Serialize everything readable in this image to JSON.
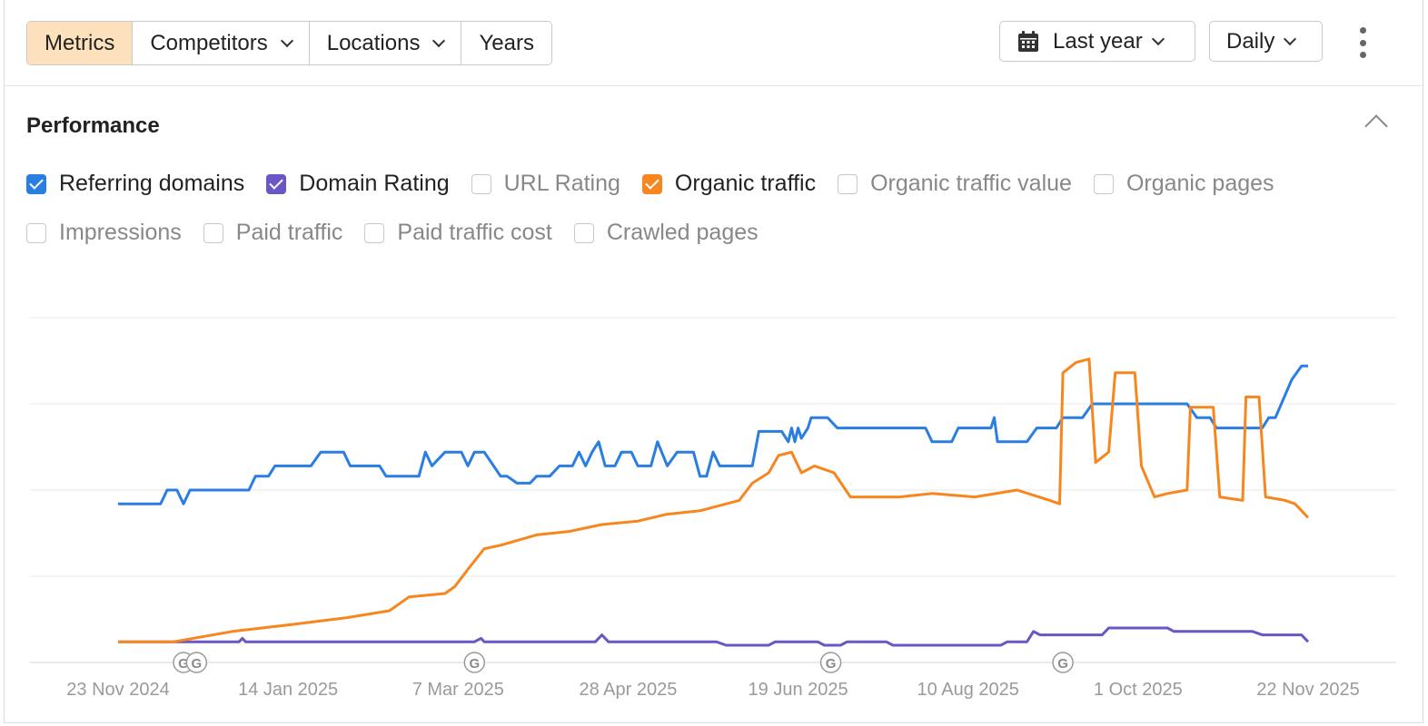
{
  "toolbar": {
    "segments": [
      {
        "label": "Metrics",
        "active": true,
        "dropdown": false
      },
      {
        "label": "Competitors",
        "active": false,
        "dropdown": true
      },
      {
        "label": "Locations",
        "active": false,
        "dropdown": true
      },
      {
        "label": "Years",
        "active": false,
        "dropdown": false
      }
    ],
    "date_range": {
      "label": "Last year",
      "icon": "calendar-icon"
    },
    "granularity": {
      "label": "Daily"
    },
    "more_icon": "more-vertical-icon"
  },
  "panel": {
    "title": "Performance",
    "collapse_icon": "chevron-up-icon"
  },
  "metrics": [
    {
      "label": "Referring domains",
      "checked": true,
      "color": "#2a7de1"
    },
    {
      "label": "Domain Rating",
      "checked": true,
      "color": "#6c55c5"
    },
    {
      "label": "URL Rating",
      "checked": false,
      "color": ""
    },
    {
      "label": "Organic traffic",
      "checked": true,
      "color": "#f7861e"
    },
    {
      "label": "Organic traffic value",
      "checked": false,
      "color": ""
    },
    {
      "label": "Organic pages",
      "checked": false,
      "color": ""
    },
    {
      "label": "Impressions",
      "checked": false,
      "color": ""
    },
    {
      "label": "Paid traffic",
      "checked": false,
      "color": ""
    },
    {
      "label": "Paid traffic cost",
      "checked": false,
      "color": ""
    },
    {
      "label": "Crawled pages",
      "checked": false,
      "color": ""
    }
  ],
  "chart_data": {
    "type": "line",
    "x_ticks": [
      "23 Nov 2024",
      "14 Jan 2025",
      "7 Mar 2025",
      "28 Apr 2025",
      "19 Jun 2025",
      "10 Aug 2025",
      "1 Oct 2025",
      "22 Nov 2025"
    ],
    "x_range": [
      "2024-11-23",
      "2025-11-22"
    ],
    "y_range": [
      0,
      100
    ],
    "y_axis_labels": false,
    "grid": true,
    "annotations": [
      {
        "date": "2024-12-13",
        "label": "G"
      },
      {
        "date": "2024-12-17",
        "label": "G"
      },
      {
        "date": "2025-03-12",
        "label": "G"
      },
      {
        "date": "2025-06-29",
        "label": "G"
      },
      {
        "date": "2025-09-08",
        "label": "G"
      }
    ],
    "series": [
      {
        "name": "Referring domains",
        "color": "#2a7de1",
        "points": [
          [
            "2024-11-23",
            46
          ],
          [
            "2024-12-06",
            46
          ],
          [
            "2024-12-08",
            50
          ],
          [
            "2024-12-11",
            50
          ],
          [
            "2024-12-13",
            46
          ],
          [
            "2024-12-15",
            50
          ],
          [
            "2024-12-28",
            50
          ],
          [
            "2025-01-02",
            50
          ],
          [
            "2025-01-04",
            54
          ],
          [
            "2025-01-08",
            54
          ],
          [
            "2025-01-10",
            57
          ],
          [
            "2025-01-21",
            57
          ],
          [
            "2025-01-24",
            61
          ],
          [
            "2025-01-31",
            61
          ],
          [
            "2025-02-02",
            57
          ],
          [
            "2025-02-11",
            57
          ],
          [
            "2025-02-13",
            54
          ],
          [
            "2025-02-23",
            54
          ],
          [
            "2025-02-25",
            61
          ],
          [
            "2025-02-27",
            57
          ],
          [
            "2025-03-03",
            61
          ],
          [
            "2025-03-08",
            61
          ],
          [
            "2025-03-10",
            57
          ],
          [
            "2025-03-12",
            61
          ],
          [
            "2025-03-15",
            61
          ],
          [
            "2025-03-20",
            54
          ],
          [
            "2025-03-22",
            54
          ],
          [
            "2025-03-25",
            52
          ],
          [
            "2025-03-29",
            52
          ],
          [
            "2025-03-31",
            54
          ],
          [
            "2025-04-04",
            54
          ],
          [
            "2025-04-07",
            57
          ],
          [
            "2025-04-11",
            57
          ],
          [
            "2025-04-13",
            61
          ],
          [
            "2025-04-15",
            57
          ],
          [
            "2025-04-17",
            61
          ],
          [
            "2025-04-19",
            64
          ],
          [
            "2025-04-21",
            57
          ],
          [
            "2025-04-24",
            57
          ],
          [
            "2025-04-26",
            61
          ],
          [
            "2025-04-29",
            61
          ],
          [
            "2025-05-01",
            57
          ],
          [
            "2025-05-05",
            57
          ],
          [
            "2025-05-07",
            64
          ],
          [
            "2025-05-10",
            57
          ],
          [
            "2025-05-13",
            61
          ],
          [
            "2025-05-18",
            61
          ],
          [
            "2025-05-20",
            54
          ],
          [
            "2025-05-22",
            54
          ],
          [
            "2025-05-24",
            61
          ],
          [
            "2025-05-26",
            57
          ],
          [
            "2025-06-05",
            57
          ],
          [
            "2025-06-07",
            67
          ],
          [
            "2025-06-14",
            67
          ],
          [
            "2025-06-16",
            64
          ],
          [
            "2025-06-17",
            68
          ],
          [
            "2025-06-18",
            64
          ],
          [
            "2025-06-19",
            68
          ],
          [
            "2025-06-20",
            65
          ],
          [
            "2025-06-22",
            68
          ],
          [
            "2025-06-23",
            71
          ],
          [
            "2025-06-28",
            71
          ],
          [
            "2025-07-01",
            68
          ],
          [
            "2025-07-28",
            68
          ],
          [
            "2025-07-30",
            64
          ],
          [
            "2025-08-05",
            64
          ],
          [
            "2025-08-07",
            68
          ],
          [
            "2025-08-17",
            68
          ],
          [
            "2025-08-18",
            71
          ],
          [
            "2025-08-19",
            64
          ],
          [
            "2025-08-28",
            64
          ],
          [
            "2025-08-31",
            68
          ],
          [
            "2025-09-06",
            68
          ],
          [
            "2025-09-08",
            71
          ],
          [
            "2025-09-14",
            71
          ],
          [
            "2025-09-17",
            75
          ],
          [
            "2025-10-16",
            75
          ],
          [
            "2025-10-19",
            71
          ],
          [
            "2025-10-23",
            71
          ],
          [
            "2025-10-25",
            68
          ],
          [
            "2025-11-08",
            68
          ],
          [
            "2025-11-10",
            71
          ],
          [
            "2025-11-12",
            71
          ],
          [
            "2025-11-17",
            82
          ],
          [
            "2025-11-20",
            86
          ],
          [
            "2025-11-22",
            86
          ]
        ]
      },
      {
        "name": "Domain Rating",
        "color": "#6c55c5",
        "points": [
          [
            "2024-11-23",
            6
          ],
          [
            "2024-12-30",
            6
          ],
          [
            "2024-12-31",
            7
          ],
          [
            "2025-01-01",
            6
          ],
          [
            "2025-03-12",
            6
          ],
          [
            "2025-03-14",
            7
          ],
          [
            "2025-03-15",
            6
          ],
          [
            "2025-04-18",
            6
          ],
          [
            "2025-04-20",
            8
          ],
          [
            "2025-04-22",
            6
          ],
          [
            "2025-05-25",
            6
          ],
          [
            "2025-05-28",
            5
          ],
          [
            "2025-06-10",
            5
          ],
          [
            "2025-06-12",
            6
          ],
          [
            "2025-06-25",
            6
          ],
          [
            "2025-06-27",
            5
          ],
          [
            "2025-07-02",
            5
          ],
          [
            "2025-07-04",
            6
          ],
          [
            "2025-07-16",
            6
          ],
          [
            "2025-07-18",
            5
          ],
          [
            "2025-08-20",
            5
          ],
          [
            "2025-08-22",
            6
          ],
          [
            "2025-08-28",
            6
          ],
          [
            "2025-08-30",
            9
          ],
          [
            "2025-09-01",
            8
          ],
          [
            "2025-09-20",
            8
          ],
          [
            "2025-09-22",
            10
          ],
          [
            "2025-09-25",
            10
          ],
          [
            "2025-10-10",
            10
          ],
          [
            "2025-10-12",
            9
          ],
          [
            "2025-11-05",
            9
          ],
          [
            "2025-11-08",
            8
          ],
          [
            "2025-11-20",
            8
          ],
          [
            "2025-11-22",
            6
          ]
        ]
      },
      {
        "name": "Organic traffic",
        "color": "#f7861e",
        "points": [
          [
            "2024-11-23",
            6
          ],
          [
            "2024-12-10",
            6
          ],
          [
            "2024-12-28",
            9
          ],
          [
            "2025-01-15",
            11
          ],
          [
            "2025-02-01",
            13
          ],
          [
            "2025-02-14",
            15
          ],
          [
            "2025-02-20",
            19
          ],
          [
            "2025-03-03",
            20
          ],
          [
            "2025-03-06",
            22
          ],
          [
            "2025-03-10",
            27
          ],
          [
            "2025-03-15",
            33
          ],
          [
            "2025-03-20",
            34
          ],
          [
            "2025-03-31",
            37
          ],
          [
            "2025-04-10",
            38
          ],
          [
            "2025-04-20",
            40
          ],
          [
            "2025-05-01",
            41
          ],
          [
            "2025-05-10",
            43
          ],
          [
            "2025-05-20",
            44
          ],
          [
            "2025-06-01",
            47
          ],
          [
            "2025-06-05",
            52
          ],
          [
            "2025-06-10",
            55
          ],
          [
            "2025-06-13",
            60
          ],
          [
            "2025-06-17",
            61
          ],
          [
            "2025-06-20",
            55
          ],
          [
            "2025-06-24",
            57
          ],
          [
            "2025-06-30",
            55
          ],
          [
            "2025-07-05",
            48
          ],
          [
            "2025-07-20",
            48
          ],
          [
            "2025-07-30",
            49
          ],
          [
            "2025-08-12",
            48
          ],
          [
            "2025-08-25",
            50
          ],
          [
            "2025-09-04",
            47
          ],
          [
            "2025-09-07",
            46
          ],
          [
            "2025-09-08",
            84
          ],
          [
            "2025-09-12",
            87
          ],
          [
            "2025-09-16",
            88
          ],
          [
            "2025-09-18",
            58
          ],
          [
            "2025-09-22",
            61
          ],
          [
            "2025-09-24",
            84
          ],
          [
            "2025-09-30",
            84
          ],
          [
            "2025-10-02",
            57
          ],
          [
            "2025-10-06",
            48
          ],
          [
            "2025-10-10",
            49
          ],
          [
            "2025-10-16",
            50
          ],
          [
            "2025-10-17",
            74
          ],
          [
            "2025-10-24",
            74
          ],
          [
            "2025-10-26",
            48
          ],
          [
            "2025-11-02",
            47
          ],
          [
            "2025-11-03",
            77
          ],
          [
            "2025-11-07",
            77
          ],
          [
            "2025-11-09",
            48
          ],
          [
            "2025-11-15",
            47
          ],
          [
            "2025-11-18",
            46
          ],
          [
            "2025-11-20",
            44
          ],
          [
            "2025-11-22",
            42
          ]
        ]
      }
    ]
  }
}
